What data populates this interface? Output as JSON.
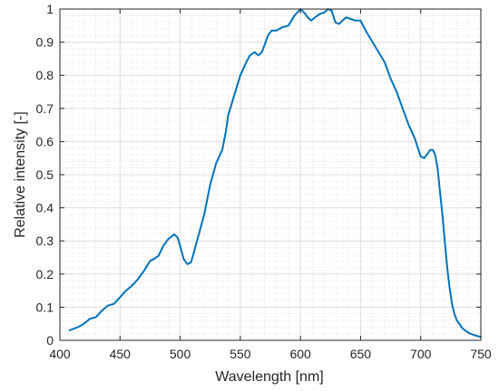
{
  "chart_data": {
    "type": "line",
    "title": "",
    "xlabel": "Wavelength [nm]",
    "ylabel": "Relative intensity [-]",
    "xlim": [
      400,
      750
    ],
    "ylim": [
      0,
      1
    ],
    "x_ticks": [
      400,
      450,
      500,
      550,
      600,
      650,
      700,
      750
    ],
    "y_ticks": [
      0,
      0.1,
      0.2,
      0.3,
      0.4,
      0.5,
      0.6,
      0.7,
      0.8,
      0.9,
      1
    ],
    "x_tick_labels": [
      "400",
      "450",
      "500",
      "550",
      "600",
      "650",
      "700",
      "750"
    ],
    "y_tick_labels": [
      "0",
      "0.1",
      "0.2",
      "0.3",
      "0.4",
      "0.5",
      "0.6",
      "0.7",
      "0.8",
      "0.9",
      "1"
    ],
    "grid": "major and minor",
    "line_color": "#0072BD",
    "series": [
      {
        "x": [
          408,
          415,
          420,
          425,
          430,
          435,
          440,
          445,
          450,
          455,
          460,
          465,
          470,
          475,
          478,
          482,
          486,
          490,
          495,
          498,
          500,
          503,
          506,
          509,
          511,
          514,
          517,
          520,
          525,
          530,
          535,
          538,
          540,
          545,
          550,
          555,
          558,
          562,
          565,
          568,
          570,
          573,
          576,
          580,
          585,
          590,
          595,
          600,
          603,
          606,
          609,
          612,
          616,
          620,
          623,
          626,
          629,
          632,
          635,
          638,
          642,
          646,
          650,
          655,
          660,
          665,
          670,
          675,
          680,
          685,
          690,
          695,
          700,
          703,
          706,
          708,
          710,
          712,
          714,
          716,
          718,
          720,
          722,
          724,
          726,
          728,
          730,
          735,
          740,
          745,
          750
        ],
        "y": [
          0.03,
          0.04,
          0.05,
          0.065,
          0.07,
          0.09,
          0.105,
          0.11,
          0.13,
          0.15,
          0.165,
          0.185,
          0.21,
          0.24,
          0.245,
          0.255,
          0.285,
          0.305,
          0.32,
          0.31,
          0.285,
          0.245,
          0.23,
          0.235,
          0.26,
          0.3,
          0.34,
          0.38,
          0.47,
          0.535,
          0.575,
          0.63,
          0.68,
          0.74,
          0.8,
          0.84,
          0.86,
          0.87,
          0.86,
          0.87,
          0.89,
          0.92,
          0.935,
          0.935,
          0.945,
          0.95,
          0.98,
          1.0,
          0.99,
          0.975,
          0.965,
          0.975,
          0.985,
          0.99,
          1.0,
          0.995,
          0.96,
          0.955,
          0.965,
          0.975,
          0.97,
          0.965,
          0.965,
          0.93,
          0.9,
          0.87,
          0.84,
          0.79,
          0.75,
          0.7,
          0.65,
          0.61,
          0.555,
          0.55,
          0.565,
          0.575,
          0.575,
          0.56,
          0.52,
          0.45,
          0.38,
          0.3,
          0.22,
          0.16,
          0.11,
          0.08,
          0.06,
          0.035,
          0.022,
          0.015,
          0.01
        ]
      }
    ]
  }
}
